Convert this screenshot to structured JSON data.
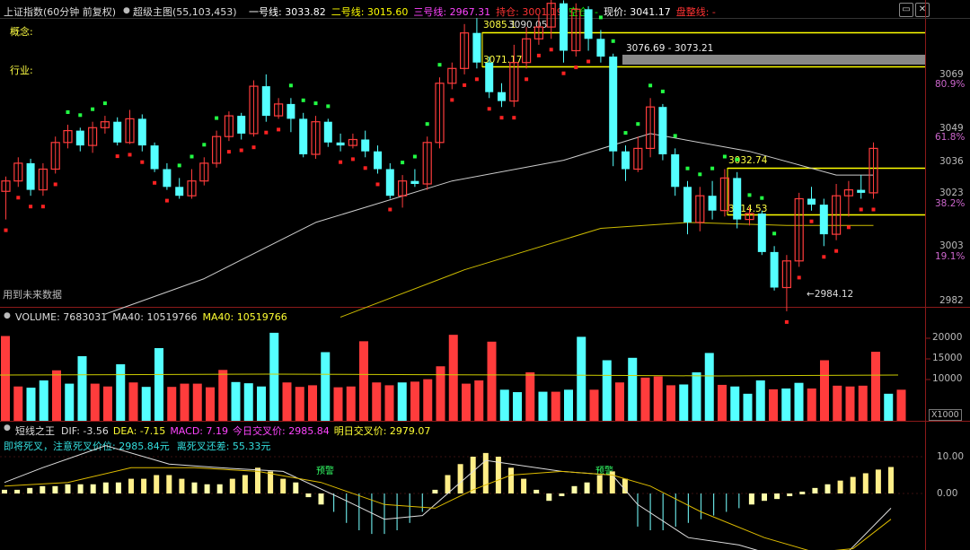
{
  "header": {
    "index_name": "上证指数(60分钟 前复权)",
    "indicator_name": "超级主图(55,103,453)",
    "lines": [
      {
        "label": "一号线:",
        "value": "3033.82",
        "color": "#ffffff"
      },
      {
        "label": "二号线:",
        "value": "3015.60",
        "color": "#ffff00"
      },
      {
        "label": "三号线:",
        "value": "2967.31",
        "color": "#ff44ff"
      },
      {
        "label": "持仓:",
        "value": "3001.19",
        "color": "#ff3333"
      },
      {
        "label": "空仓:",
        "value": "-",
        "color": "#00ff00"
      },
      {
        "label": "现价:",
        "value": "3041.17",
        "color": "#ffffff"
      },
      {
        "label": "盘整线:",
        "value": "-",
        "color": "#ff3333"
      }
    ]
  },
  "main_labels": {
    "concept": "概念:",
    "industry": "行业:",
    "future_data_note": "用到未来数据",
    "level_3085": "3085.1",
    "level_3090": "3090.05",
    "level_3071": "3071.17",
    "range_label": "3076.69 - 3073.21",
    "level_3032": "3032.74",
    "level_3014": "3014.53",
    "low_label": "2984.12"
  },
  "price_axis": [
    "3069",
    "3049",
    "3036",
    "3023",
    "3003",
    "2982"
  ],
  "percent_axis": [
    "80.9%",
    "61.8%",
    "38.2%",
    "19.1%"
  ],
  "volume": {
    "header": [
      {
        "label": "VOLUME:",
        "value": "7683031",
        "color": "#dddddd"
      },
      {
        "label": "MA40:",
        "value": "10519766",
        "color": "#dddddd"
      },
      {
        "label": "MA40:",
        "value": "10519766",
        "color": "#ffff33"
      }
    ],
    "axis": [
      "20000",
      "15000",
      "10000"
    ],
    "unit": "X1000"
  },
  "macd": {
    "name": "短线之王",
    "header": [
      {
        "label": "DIF:",
        "value": "-3.56",
        "color": "#dddddd"
      },
      {
        "label": "DEA:",
        "value": "-7.15",
        "color": "#ffff33"
      },
      {
        "label": "MACD:",
        "value": "7.19",
        "color": "#ff44ff"
      },
      {
        "label": "今日交叉价:",
        "value": "2985.84",
        "color": "#ff44ff"
      },
      {
        "label": "明日交叉价:",
        "value": "2979.07",
        "color": "#ffff33"
      }
    ],
    "line2": [
      {
        "label": "即将死叉，注意死叉价位:",
        "value": "2985.84元",
        "color": "#33dddd"
      },
      {
        "label": "离死叉还差:",
        "value": "55.33元",
        "color": "#33dddd"
      }
    ],
    "axis": [
      "10.00",
      "0.00"
    ],
    "warn_label": "预警"
  },
  "colors": {
    "up": "#ff3c3c",
    "down": "#54ffff",
    "ma_white": "#cccccc",
    "ma_yellow": "#ccbb00",
    "level_line": "#ffff00"
  },
  "chart_data": {
    "type": "candlestick",
    "candles": [
      [
        3026.5,
        3030,
        3031.5,
        3017
      ],
      [
        3030,
        3036,
        3038,
        3028
      ],
      [
        3036,
        3027,
        3037.5,
        3025
      ],
      [
        3027,
        3034,
        3036,
        3025
      ],
      [
        3034,
        3043,
        3045,
        3032.5
      ],
      [
        3043,
        3047,
        3049,
        3041
      ],
      [
        3047,
        3042,
        3048,
        3040
      ],
      [
        3042,
        3048,
        3050,
        3039.5
      ],
      [
        3048,
        3050,
        3052,
        3046
      ],
      [
        3050,
        3043,
        3051.5,
        3042
      ],
      [
        3043,
        3051,
        3054,
        3042.5
      ],
      [
        3051,
        3042,
        3052.5,
        3040
      ],
      [
        3042,
        3034,
        3043,
        3033
      ],
      [
        3034,
        3028,
        3036,
        3027
      ],
      [
        3028,
        3025,
        3031,
        3024
      ],
      [
        3025,
        3030,
        3034,
        3024
      ],
      [
        3030,
        3036,
        3038,
        3028.5
      ],
      [
        3036,
        3045,
        3047,
        3034.5
      ],
      [
        3045,
        3052,
        3053.5,
        3043.5
      ],
      [
        3052,
        3046,
        3053,
        3044
      ],
      [
        3046,
        3062,
        3064,
        3045
      ],
      [
        3062,
        3052,
        3066,
        3050
      ],
      [
        3052,
        3056,
        3058,
        3051
      ],
      [
        3056,
        3051,
        3058,
        3046.5
      ],
      [
        3051,
        3039,
        3053,
        3038
      ],
      [
        3039,
        3050,
        3052,
        3037.5
      ],
      [
        3050,
        3043,
        3051,
        3041.5
      ],
      [
        3043,
        3042,
        3046,
        3040
      ],
      [
        3042,
        3044,
        3046,
        3041
      ],
      [
        3044,
        3040,
        3047,
        3038
      ],
      [
        3040,
        3034,
        3042,
        3032.5
      ],
      [
        3034,
        3025,
        3036,
        3024
      ],
      [
        3025,
        3030,
        3032,
        3021
      ],
      [
        3030,
        3029,
        3034,
        3028
      ],
      [
        3029,
        3043,
        3045,
        3027
      ],
      [
        3043,
        3063,
        3065,
        3041
      ],
      [
        3063,
        3068,
        3070,
        3061
      ],
      [
        3068,
        3080,
        3083,
        3066
      ],
      [
        3080,
        3070,
        3085,
        3068
      ],
      [
        3070,
        3060,
        3072,
        3058
      ],
      [
        3060,
        3057,
        3063,
        3055
      ],
      [
        3057,
        3070,
        3076,
        3055
      ],
      [
        3070,
        3078,
        3082,
        3068
      ],
      [
        3078,
        3082,
        3086,
        3076
      ],
      [
        3082,
        3090,
        3092,
        3078
      ],
      [
        3090,
        3074,
        3091,
        3070
      ],
      [
        3074,
        3088,
        3090,
        3072
      ],
      [
        3088,
        3078,
        3089,
        3074
      ],
      [
        3078,
        3072,
        3081,
        3070
      ],
      [
        3072,
        3040,
        3073,
        3035
      ],
      [
        3040,
        3034,
        3042,
        3030
      ],
      [
        3034,
        3041,
        3045,
        3033
      ],
      [
        3041,
        3055,
        3058,
        3038
      ],
      [
        3055,
        3039,
        3056,
        3037
      ],
      [
        3039,
        3028,
        3041,
        3025
      ],
      [
        3028,
        3016,
        3030,
        3012
      ],
      [
        3016,
        3025,
        3028,
        3013
      ],
      [
        3025,
        3020,
        3030,
        3017
      ],
      [
        3020,
        3031,
        3034,
        3018
      ],
      [
        3031,
        3017,
        3033,
        3014
      ],
      [
        3017,
        3019,
        3021,
        3015
      ],
      [
        3019,
        3006,
        3020,
        3005
      ],
      [
        3006,
        2994,
        3008,
        2993
      ],
      [
        2994,
        3003,
        3005,
        2986
      ],
      [
        3003,
        3024,
        3026,
        3001
      ],
      [
        3024,
        3022,
        3028,
        3020
      ],
      [
        3022,
        3012,
        3024,
        3008
      ],
      [
        3012,
        3025,
        3029,
        3010
      ],
      [
        3025,
        3027,
        3030,
        3018
      ],
      [
        3027,
        3026,
        3032,
        3024
      ],
      [
        3026,
        3041,
        3043,
        3024
      ]
    ],
    "ma_white_anchors": [
      [
        8,
        2985
      ],
      [
        16,
        2997
      ],
      [
        25,
        3016
      ],
      [
        36,
        3030
      ],
      [
        45,
        3037
      ],
      [
        52,
        3046
      ],
      [
        60,
        3040
      ],
      [
        67,
        3032
      ],
      [
        70,
        3032
      ]
    ],
    "ma_yellow_anchors": [
      [
        27,
        2984
      ],
      [
        37,
        3000
      ],
      [
        48,
        3014
      ],
      [
        55,
        3016
      ],
      [
        63,
        3015
      ],
      [
        70,
        3015
      ]
    ],
    "volume_bars": [
      [
        21000,
        1
      ],
      [
        8500,
        1
      ],
      [
        8200,
        0
      ],
      [
        10000,
        0
      ],
      [
        12500,
        1
      ],
      [
        9200,
        0
      ],
      [
        16000,
        0
      ],
      [
        9200,
        1
      ],
      [
        8500,
        1
      ],
      [
        14000,
        0
      ],
      [
        9500,
        1
      ],
      [
        8400,
        0
      ],
      [
        18000,
        0
      ],
      [
        8400,
        1
      ],
      [
        9200,
        1
      ],
      [
        9200,
        1
      ],
      [
        8300,
        1
      ],
      [
        12600,
        1
      ],
      [
        9600,
        0
      ],
      [
        9300,
        0
      ],
      [
        8500,
        0
      ],
      [
        21800,
        0
      ],
      [
        9500,
        1
      ],
      [
        8400,
        1
      ],
      [
        8800,
        1
      ],
      [
        17000,
        0
      ],
      [
        8300,
        1
      ],
      [
        8500,
        1
      ],
      [
        19700,
        1
      ],
      [
        9500,
        1
      ],
      [
        8800,
        1
      ],
      [
        9500,
        0
      ],
      [
        9700,
        1
      ],
      [
        10300,
        1
      ],
      [
        13500,
        1
      ],
      [
        21300,
        1
      ],
      [
        9200,
        1
      ],
      [
        10000,
        1
      ],
      [
        19600,
        1
      ],
      [
        7700,
        0
      ],
      [
        7100,
        0
      ],
      [
        12000,
        1
      ],
      [
        7200,
        0
      ],
      [
        7200,
        1
      ],
      [
        7700,
        0
      ],
      [
        20800,
        0
      ],
      [
        7700,
        1
      ],
      [
        15000,
        0
      ],
      [
        9500,
        1
      ],
      [
        15600,
        0
      ],
      [
        10700,
        1
      ],
      [
        11000,
        1
      ],
      [
        8800,
        1
      ],
      [
        9000,
        0
      ],
      [
        12000,
        0
      ],
      [
        16800,
        0
      ],
      [
        8900,
        1
      ],
      [
        8500,
        0
      ],
      [
        6700,
        0
      ],
      [
        10000,
        0
      ],
      [
        7800,
        1
      ],
      [
        8000,
        0
      ],
      [
        9400,
        0
      ],
      [
        8000,
        1
      ],
      [
        15000,
        1
      ],
      [
        8700,
        1
      ],
      [
        8500,
        1
      ],
      [
        8700,
        1
      ],
      [
        17100,
        1
      ],
      [
        6700,
        0
      ],
      [
        7700,
        1
      ]
    ],
    "macd_hist": [
      1,
      1,
      1.5,
      2,
      2,
      2.5,
      2.5,
      2.5,
      3,
      3,
      4,
      4,
      5,
      5,
      4,
      3,
      2.5,
      2.5,
      4,
      5,
      7,
      6,
      4,
      3,
      -1,
      -3,
      -5,
      -8,
      -10,
      -11,
      -11,
      -10,
      -8,
      -5,
      1,
      5,
      8,
      10,
      11,
      10,
      7,
      4,
      1,
      -2,
      0,
      2,
      3,
      5,
      6,
      4,
      -9,
      -10,
      -10,
      -9,
      -8,
      -7,
      -6,
      -5,
      -4,
      -3,
      -2,
      -1.5,
      -0.5,
      0.5,
      1.5,
      2.5,
      3.5,
      4.5,
      5.5,
      6.5,
      7.2
    ],
    "dif_anchors": [
      [
        0,
        3
      ],
      [
        3,
        7
      ],
      [
        8,
        13
      ],
      [
        13,
        8
      ],
      [
        17,
        7
      ],
      [
        22,
        6
      ],
      [
        27,
        -2
      ],
      [
        30,
        -7
      ],
      [
        33,
        -6
      ],
      [
        36,
        3
      ],
      [
        38,
        9
      ],
      [
        44,
        6
      ],
      [
        48,
        5
      ],
      [
        50,
        -3
      ],
      [
        54,
        -12
      ],
      [
        58,
        -14
      ],
      [
        62,
        -18
      ],
      [
        64,
        -20
      ],
      [
        66,
        -18
      ],
      [
        70,
        -4
      ]
    ],
    "dea_anchors": [
      [
        0,
        2
      ],
      [
        5,
        3
      ],
      [
        10,
        7
      ],
      [
        15,
        7
      ],
      [
        20,
        6
      ],
      [
        25,
        3
      ],
      [
        30,
        -3
      ],
      [
        34,
        -4
      ],
      [
        37,
        1
      ],
      [
        40,
        5
      ],
      [
        44,
        6
      ],
      [
        48,
        5
      ],
      [
        51,
        2
      ],
      [
        55,
        -5
      ],
      [
        60,
        -12
      ],
      [
        64,
        -16
      ],
      [
        67,
        -15
      ],
      [
        70,
        -7
      ]
    ]
  }
}
